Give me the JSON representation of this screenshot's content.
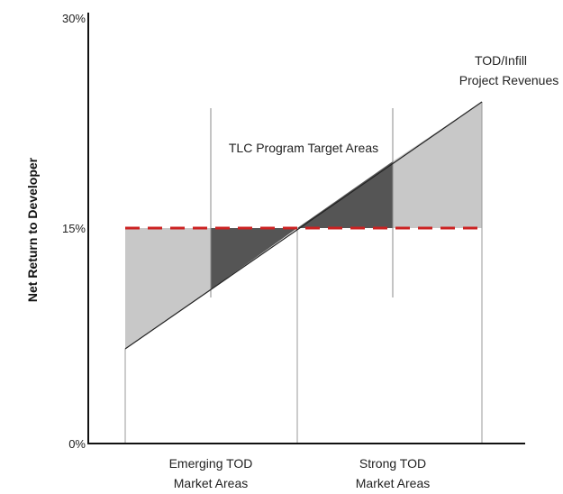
{
  "chart_data": {
    "type": "line",
    "ylabel": "Net Return to Developer",
    "y_ticks": [
      "30%",
      "15%",
      "0%"
    ],
    "ylim": [
      0,
      30
    ],
    "x_category_labels": [
      {
        "line1": "Emerging TOD",
        "line2": "Market Areas"
      },
      {
        "line1": "Strong TOD",
        "line2": "Market Areas"
      }
    ],
    "series": [
      {
        "name": "TOD/Infill Project Revenues",
        "points": [
          [
            0,
            6.6
          ],
          [
            100,
            23.7
          ]
        ]
      },
      {
        "name": "threshold",
        "style": "dashed",
        "color": "#cc2222",
        "points": [
          [
            0,
            14.9
          ],
          [
            100,
            14.9
          ]
        ]
      }
    ],
    "annotations": {
      "revenue_line_1": "TOD/Infill",
      "revenue_line_2": "Project Revenues",
      "target_areas": "TLC Program Target Areas"
    },
    "colors": {
      "light_fill": "#c8c8c8",
      "dark_fill": "#555555",
      "threshold": "#cc2222",
      "axis": "#111111"
    }
  }
}
